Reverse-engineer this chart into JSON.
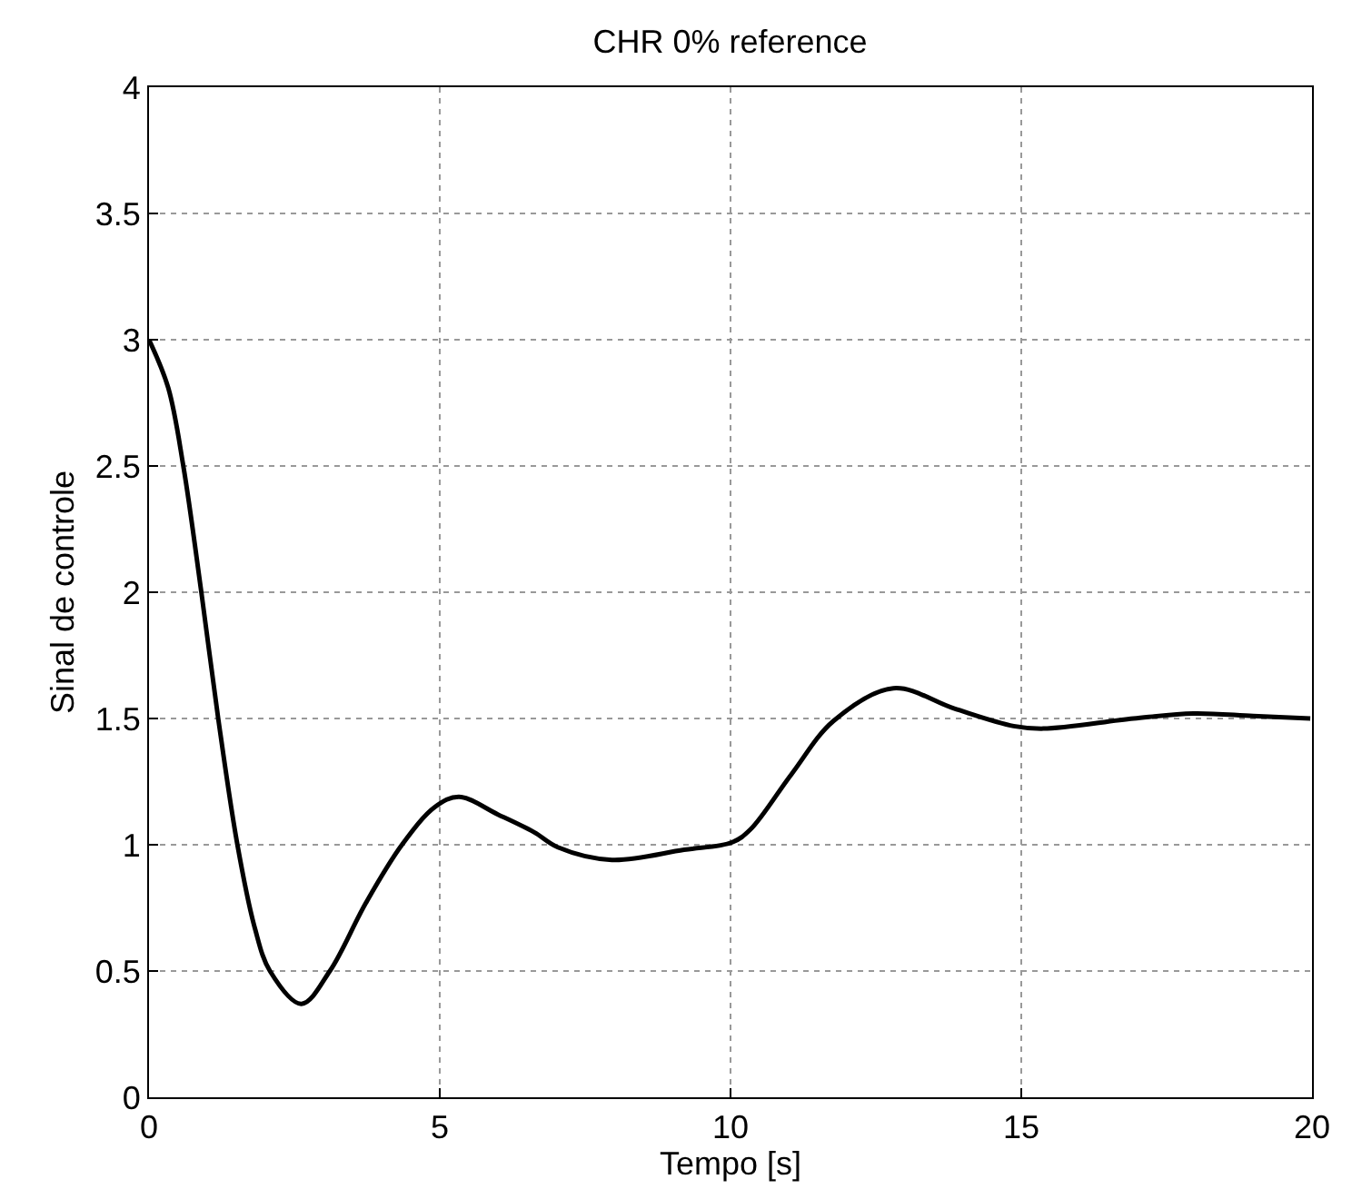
{
  "chart_data": {
    "type": "line",
    "title": "CHR 0% reference",
    "xlabel": "Tempo [s]",
    "ylabel": "Sinal de controle",
    "series": [
      {
        "color": "#000000",
        "x": [
          0,
          0.33,
          0.59,
          0.9,
          1.19,
          1.52,
          1.82,
          2.08,
          2.62,
          3.11,
          3.73,
          4.35,
          4.92,
          5.33,
          6.0,
          6.62,
          7.03,
          7.96,
          9.2,
          10.03,
          10.34,
          11.05,
          11.77,
          12.8,
          13.84,
          14.87,
          15.38,
          16.93,
          17.96,
          18.99,
          19.97
        ],
        "values": [
          3.0,
          2.81,
          2.5,
          2.0,
          1.5,
          1.0,
          0.67,
          0.5,
          0.37,
          0.5,
          0.77,
          1.0,
          1.15,
          1.19,
          1.12,
          1.05,
          0.99,
          0.94,
          0.98,
          1.01,
          1.06,
          1.28,
          1.49,
          1.62,
          1.54,
          1.47,
          1.46,
          1.5,
          1.52,
          1.51,
          1.5
        ]
      }
    ],
    "xlim": [
      0,
      20
    ],
    "xticks": [
      0,
      5,
      10,
      15,
      20
    ],
    "ylim": [
      0,
      4
    ],
    "yticks": [
      0,
      0.5,
      1,
      1.5,
      2,
      2.5,
      3,
      3.5,
      4
    ],
    "grid": true,
    "marker": "none",
    "line_style": "solid"
  }
}
